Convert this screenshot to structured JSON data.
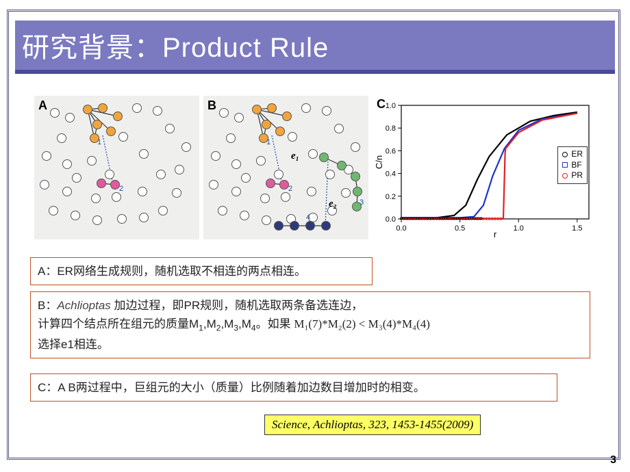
{
  "header": {
    "title": "研究背景：Product Rule"
  },
  "panels": {
    "a_label": "A",
    "b_label": "B",
    "c_label": "C",
    "a_num1": "1",
    "a_num2": "2",
    "b_num1": "1",
    "b_num2": "2",
    "b_num3": "3",
    "b_num4": "4",
    "b_e1": "e₁",
    "b_e2": "e₂"
  },
  "network": {
    "hollow_nodes": [
      [
        30,
        25
      ],
      [
        52,
        32
      ],
      [
        40,
        62
      ],
      [
        18,
        88
      ],
      [
        48,
        100
      ],
      [
        15,
        130
      ],
      [
        48,
        140
      ],
      [
        28,
        168
      ],
      [
        60,
        175
      ],
      [
        92,
        182
      ],
      [
        128,
        180
      ],
      [
        160,
        178
      ],
      [
        188,
        168
      ],
      [
        208,
        142
      ],
      [
        212,
        108
      ],
      [
        222,
        75
      ],
      [
        198,
        48
      ],
      [
        180,
        22
      ],
      [
        150,
        18
      ],
      [
        130,
        60
      ],
      [
        160,
        85
      ],
      [
        185,
        115
      ],
      [
        158,
        140
      ],
      [
        120,
        148
      ],
      [
        90,
        150
      ],
      [
        62,
        120
      ],
      [
        84,
        95
      ],
      [
        110,
        115
      ]
    ],
    "orange_cluster": [
      [
        78,
        20
      ],
      [
        100,
        18
      ],
      [
        122,
        30
      ],
      [
        92,
        42
      ],
      [
        112,
        52
      ],
      [
        88,
        62
      ]
    ],
    "pink_pair": [
      [
        98,
        128
      ],
      [
        118,
        130
      ]
    ],
    "green_chain": [
      [
        176,
        90
      ],
      [
        202,
        102
      ],
      [
        222,
        118
      ],
      [
        225,
        140
      ],
      [
        224,
        162
      ]
    ],
    "navy_chain": [
      [
        110,
        190
      ],
      [
        133,
        190
      ],
      [
        156,
        190
      ],
      [
        179,
        190
      ]
    ]
  },
  "chart": {
    "type": "line",
    "xlabel": "r",
    "ylabel": "C/n",
    "xlim": [
      0,
      1.6
    ],
    "ylim": [
      0,
      1.0
    ],
    "xticks": [
      0.0,
      0.5,
      1.0,
      1.5
    ],
    "yticks": [
      0.0,
      0.2,
      0.4,
      0.6,
      0.8,
      1.0
    ],
    "background": "#ffffff",
    "axis_color": "#000000",
    "legend": [
      {
        "label": "ER",
        "color": "#000000",
        "shape": "circle-open"
      },
      {
        "label": "BF",
        "color": "#2030d0",
        "shape": "square-open"
      },
      {
        "label": "PR",
        "color": "#e02020",
        "shape": "circle-open"
      }
    ],
    "series": {
      "ER": {
        "color": "#000000",
        "data": [
          [
            0.0,
            0.01
          ],
          [
            0.3,
            0.01
          ],
          [
            0.45,
            0.03
          ],
          [
            0.55,
            0.12
          ],
          [
            0.65,
            0.35
          ],
          [
            0.75,
            0.55
          ],
          [
            0.9,
            0.74
          ],
          [
            1.1,
            0.86
          ],
          [
            1.3,
            0.91
          ],
          [
            1.5,
            0.94
          ]
        ]
      },
      "BF": {
        "color": "#2030d0",
        "data": [
          [
            0.0,
            0.01
          ],
          [
            0.5,
            0.01
          ],
          [
            0.62,
            0.02
          ],
          [
            0.7,
            0.12
          ],
          [
            0.78,
            0.38
          ],
          [
            0.88,
            0.62
          ],
          [
            1.0,
            0.78
          ],
          [
            1.2,
            0.88
          ],
          [
            1.5,
            0.93
          ]
        ]
      },
      "PR": {
        "color": "#e02020",
        "data": [
          [
            0.0,
            0.0
          ],
          [
            0.87,
            0.0
          ],
          [
            0.885,
            0.58
          ],
          [
            0.89,
            0.62
          ],
          [
            1.0,
            0.76
          ],
          [
            1.2,
            0.87
          ],
          [
            1.5,
            0.93
          ]
        ]
      }
    },
    "label_fontsize": 13
  },
  "text_boxes": {
    "a": "A：ER网络生成规则，随机选取不相连的两点相连。",
    "b_line1_pre": "B：",
    "b_line1_it": "Achlioptas ",
    "b_line1_post": "加边过程，即PR规则，随机选取两条备选连边，",
    "b_line2_pre": "计算四个结点所在组元的质量M",
    "b_line2_mid": ",M",
    "b_line2_post": "。如果 ",
    "b_math": "M₁(7)*M₂(2) < M₃(4)*M₄(4)",
    "b_line3": "选择e1相连。",
    "c": "C：A B两过程中，巨组元的大小（质量）比例随着加边数目增加时的相变。"
  },
  "citation": "Science, Achlioptas, 323, 1453-1455(2009)",
  "pagenum": "3"
}
